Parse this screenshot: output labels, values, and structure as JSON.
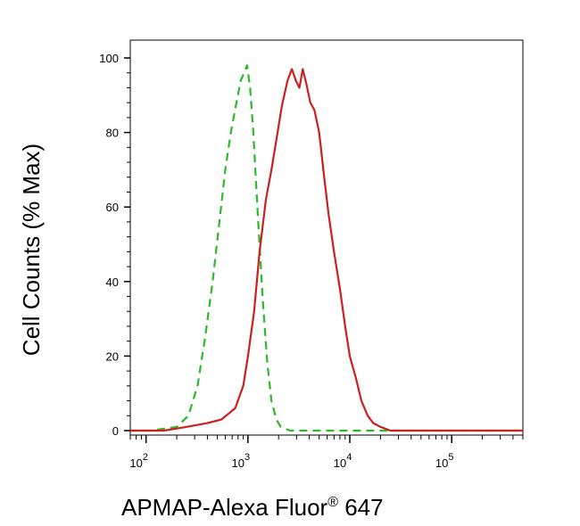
{
  "chart_data": {
    "type": "line",
    "title": "",
    "xlabel": "APMAP-Alexa Fluor",
    "xlabel_mark": "®",
    "xlabel_suffix": " 647",
    "ylabel": "Cell Counts (% Max)",
    "x_scale": "log",
    "xlim": [
      70,
      500000
    ],
    "ylim": [
      0,
      100
    ],
    "y_ticks": [
      0,
      20,
      40,
      60,
      80,
      100
    ],
    "x_ticks": [
      {
        "value": 100,
        "base": "10",
        "exp": "2"
      },
      {
        "value": 1000,
        "base": "10",
        "exp": "3"
      },
      {
        "value": 10000,
        "base": "10",
        "exp": "4"
      },
      {
        "value": 100000,
        "base": "10",
        "exp": "5"
      }
    ],
    "grid": false,
    "legend": "none",
    "series": [
      {
        "color": "#2db82d",
        "style": "dashed",
        "points": [
          [
            70,
            0
          ],
          [
            110,
            0
          ],
          [
            200,
            1
          ],
          [
            260,
            4
          ],
          [
            320,
            12
          ],
          [
            380,
            25
          ],
          [
            450,
            40
          ],
          [
            520,
            55
          ],
          [
            600,
            70
          ],
          [
            680,
            80
          ],
          [
            760,
            87
          ],
          [
            850,
            94
          ],
          [
            920,
            96
          ],
          [
            980,
            98
          ],
          [
            1050,
            92
          ],
          [
            1130,
            80
          ],
          [
            1250,
            58
          ],
          [
            1400,
            35
          ],
          [
            1550,
            18
          ],
          [
            1700,
            8
          ],
          [
            1900,
            3
          ],
          [
            2100,
            1
          ],
          [
            2600,
            0
          ],
          [
            500000,
            0
          ]
        ]
      },
      {
        "color": "#cc1f1f",
        "style": "solid",
        "points": [
          [
            70,
            0
          ],
          [
            150,
            0
          ],
          [
            250,
            1
          ],
          [
            400,
            2
          ],
          [
            550,
            3
          ],
          [
            750,
            6
          ],
          [
            900,
            12
          ],
          [
            1000,
            20
          ],
          [
            1150,
            32
          ],
          [
            1300,
            48
          ],
          [
            1500,
            62
          ],
          [
            1700,
            70
          ],
          [
            1900,
            78
          ],
          [
            2150,
            87
          ],
          [
            2450,
            94
          ],
          [
            2700,
            97
          ],
          [
            2950,
            94
          ],
          [
            3200,
            92
          ],
          [
            3450,
            97
          ],
          [
            3750,
            93
          ],
          [
            4100,
            88
          ],
          [
            4500,
            86
          ],
          [
            5000,
            80
          ],
          [
            5600,
            68
          ],
          [
            6200,
            58
          ],
          [
            7000,
            48
          ],
          [
            8000,
            38
          ],
          [
            9000,
            28
          ],
          [
            10000,
            20
          ],
          [
            11500,
            14
          ],
          [
            13000,
            8
          ],
          [
            15000,
            4
          ],
          [
            17000,
            2
          ],
          [
            20000,
            1
          ],
          [
            25000,
            0
          ],
          [
            500000,
            0
          ]
        ]
      }
    ]
  }
}
